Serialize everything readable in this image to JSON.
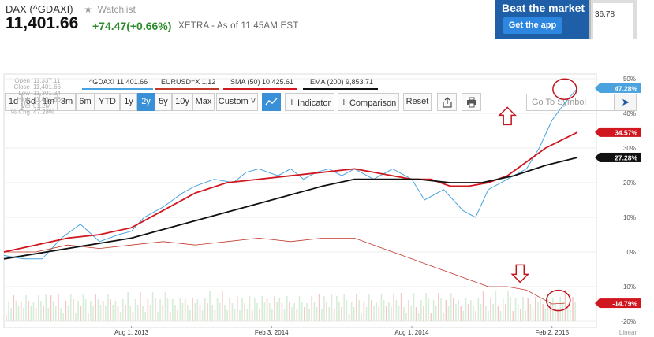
{
  "header": {
    "name": "DAX (^GDAXI)",
    "watchlist_label": "Watchlist",
    "price": "11,401.66",
    "change": "+74.47(+0.66%)",
    "exchange_note": "XETRA - As of 11:45AM EST"
  },
  "ad": {
    "title": "Beat the market",
    "button": "Get the app",
    "phone_value": "36.78",
    "colors": {
      "bg": "#1f5fa8",
      "button": "#2d86e0"
    }
  },
  "toolbar": {
    "ranges": [
      "1d",
      "5d",
      "1m",
      "3m",
      "6m",
      "YTD",
      "1y",
      "2y",
      "5y",
      "10y",
      "Max"
    ],
    "active_range": "2y",
    "custom_label": "Custom",
    "indicator_label": "Indicator",
    "comparison_label": "Comparison",
    "reset_label": "Reset",
    "search_placeholder": "Go To Symbol",
    "icons": [
      "line-chart-icon",
      "plus-icon",
      "share-icon",
      "print-icon",
      "arrow-right-icon"
    ]
  },
  "stats": [
    {
      "label": "Open",
      "value": "11,337.11"
    },
    {
      "label": "Close",
      "value": "11,401.66"
    },
    {
      "label": "Low",
      "value": "11,301.34"
    },
    {
      "label": "High",
      "value": "11,401.66"
    },
    {
      "label": "Vol",
      "value": "91.2M"
    },
    {
      "label": "% Chg",
      "value": "47.28%"
    }
  ],
  "chart_data": {
    "type": "line",
    "x_ticks": [
      "Aug 1, 2013",
      "Feb 3, 2014",
      "Aug 1, 2014",
      "Feb 2, 2015"
    ],
    "y_ticks": [
      "50%",
      "40%",
      "30%",
      "20%",
      "10%",
      "0%",
      "-10%",
      "-20%"
    ],
    "ylim": [
      -20,
      50
    ],
    "y_scale_label": "Linear",
    "legend": [
      {
        "label": "^GDAXI 11,401.66",
        "color": "#4aa3df"
      },
      {
        "label": "EURUSD=X 1.12",
        "color": "#c0392b"
      },
      {
        "label": "SMA (50) 10,425.61",
        "color": "#d0161e"
      },
      {
        "label": "EMA (200) 9,853.71",
        "color": "#111111"
      }
    ],
    "end_badges": [
      {
        "label": "47.28%",
        "value": 47.28,
        "color": "#4aa3df"
      },
      {
        "label": "34.57%",
        "value": 34.57,
        "color": "#d0161e"
      },
      {
        "label": "27.28%",
        "value": 27.28,
        "color": "#111111"
      },
      {
        "label": "-14.79%",
        "value": -14.79,
        "color": "#d0161e"
      }
    ],
    "series": [
      {
        "name": "^GDAXI",
        "color": "#4aa3df",
        "points": [
          [
            0,
            -1
          ],
          [
            3,
            -2
          ],
          [
            6,
            -2
          ],
          [
            9,
            4
          ],
          [
            12,
            8
          ],
          [
            15,
            3
          ],
          [
            18,
            5
          ],
          [
            20,
            6
          ],
          [
            22,
            10
          ],
          [
            25,
            13
          ],
          [
            28,
            17
          ],
          [
            30,
            19
          ],
          [
            33,
            21
          ],
          [
            36,
            20
          ],
          [
            38,
            23
          ],
          [
            40,
            24
          ],
          [
            43,
            22
          ],
          [
            45,
            24
          ],
          [
            47,
            21
          ],
          [
            49,
            23
          ],
          [
            51,
            24
          ],
          [
            53,
            22
          ],
          [
            55,
            24
          ],
          [
            58,
            21
          ],
          [
            61,
            24
          ],
          [
            64,
            21
          ],
          [
            66,
            15
          ],
          [
            69,
            18
          ],
          [
            72,
            12
          ],
          [
            74,
            10
          ],
          [
            76,
            18
          ],
          [
            79,
            21
          ],
          [
            82,
            24
          ],
          [
            84,
            30
          ],
          [
            86,
            38
          ],
          [
            88,
            43
          ],
          [
            90,
            47.28
          ]
        ]
      },
      {
        "name": "EURUSD=X",
        "color": "#c0392b",
        "points": [
          [
            0,
            0
          ],
          [
            5,
            0
          ],
          [
            10,
            2
          ],
          [
            15,
            1
          ],
          [
            20,
            2
          ],
          [
            25,
            3
          ],
          [
            30,
            2
          ],
          [
            35,
            3
          ],
          [
            40,
            4
          ],
          [
            45,
            3
          ],
          [
            50,
            4
          ],
          [
            55,
            4
          ],
          [
            58,
            2
          ],
          [
            61,
            0
          ],
          [
            64,
            -2
          ],
          [
            67,
            -4
          ],
          [
            70,
            -6
          ],
          [
            73,
            -8
          ],
          [
            76,
            -10
          ],
          [
            79,
            -10
          ],
          [
            82,
            -11
          ],
          [
            84,
            -13
          ],
          [
            86,
            -15
          ],
          [
            88,
            -14.79
          ]
        ]
      },
      {
        "name": "SMA (50)",
        "color": "#d0161e",
        "points": [
          [
            0,
            0
          ],
          [
            5,
            2
          ],
          [
            10,
            4
          ],
          [
            15,
            5
          ],
          [
            20,
            7
          ],
          [
            25,
            12
          ],
          [
            30,
            17
          ],
          [
            35,
            20
          ],
          [
            40,
            21
          ],
          [
            45,
            22
          ],
          [
            50,
            23
          ],
          [
            55,
            24
          ],
          [
            58,
            23
          ],
          [
            61,
            22
          ],
          [
            64,
            21
          ],
          [
            67,
            21
          ],
          [
            70,
            19
          ],
          [
            73,
            19
          ],
          [
            76,
            20
          ],
          [
            79,
            22
          ],
          [
            82,
            26
          ],
          [
            85,
            30
          ],
          [
            90,
            34.57
          ]
        ]
      },
      {
        "name": "EMA (200)",
        "color": "#111111",
        "points": [
          [
            0,
            -2
          ],
          [
            10,
            1
          ],
          [
            20,
            4
          ],
          [
            30,
            9
          ],
          [
            40,
            14
          ],
          [
            50,
            19
          ],
          [
            55,
            21
          ],
          [
            60,
            21
          ],
          [
            65,
            21
          ],
          [
            70,
            20
          ],
          [
            75,
            20
          ],
          [
            80,
            22
          ],
          [
            85,
            25
          ],
          [
            90,
            27.28
          ]
        ]
      }
    ],
    "x_range": [
      0,
      90
    ],
    "annotations": [
      {
        "type": "arrow-up",
        "x": 79,
        "y": 39
      },
      {
        "type": "circle",
        "x": 88,
        "y": 47
      },
      {
        "type": "arrow-down",
        "x": 81,
        "y": -6
      },
      {
        "type": "circle",
        "x": 87,
        "y": -14
      }
    ]
  }
}
